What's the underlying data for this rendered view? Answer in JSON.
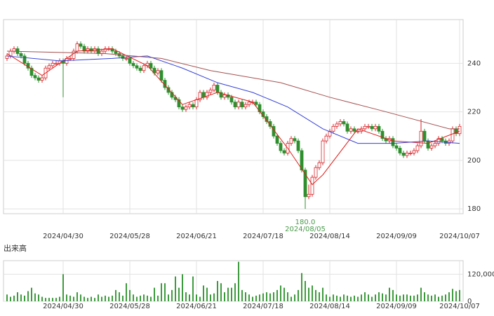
{
  "chart_data": [
    {
      "type": "candlestick",
      "categories": [
        null,
        null,
        null,
        null,
        null,
        null,
        null,
        null,
        null,
        null,
        null,
        null,
        null,
        null,
        null,
        null,
        "2024/04/30",
        null,
        null,
        null,
        null,
        null,
        null,
        null,
        null,
        null,
        null,
        null,
        null,
        null,
        null,
        null,
        null,
        null,
        null,
        "2024/05/28",
        null,
        null,
        null,
        null,
        null,
        null,
        null,
        null,
        null,
        null,
        null,
        null,
        null,
        null,
        null,
        null,
        null,
        null,
        "2024/06/21",
        null,
        null,
        null,
        null,
        null,
        null,
        null,
        null,
        null,
        null,
        null,
        null,
        null,
        null,
        null,
        null,
        null,
        null,
        "2024/07/18",
        null,
        null,
        null,
        null,
        null,
        null,
        null,
        null,
        null,
        null,
        null,
        null,
        null,
        null,
        null,
        null,
        null,
        null,
        "2024/08/14",
        null,
        null,
        null,
        null,
        null,
        null,
        null,
        null,
        null,
        null,
        null,
        null,
        null,
        null,
        null,
        null,
        null,
        null,
        "2024/09/09",
        null,
        null,
        null,
        null,
        null,
        null,
        null,
        null,
        null,
        null,
        null,
        null,
        null,
        null,
        null,
        null,
        null,
        "2024/10/07"
      ],
      "open": [
        242,
        243,
        245,
        246,
        244,
        243,
        240,
        238,
        235,
        234,
        233,
        234,
        238,
        239,
        240,
        240,
        241,
        240,
        242,
        242,
        245,
        248,
        247,
        245,
        246,
        245,
        246,
        244,
        245,
        246,
        246,
        245,
        244,
        243,
        242,
        242,
        240,
        239,
        238,
        237,
        239,
        240,
        238,
        236,
        237,
        233,
        230,
        228,
        226,
        225,
        222,
        221,
        222,
        223,
        222,
        225,
        228,
        226,
        228,
        229,
        231,
        228,
        226,
        227,
        226,
        224,
        222,
        224,
        222,
        223,
        224,
        224,
        223,
        220,
        218,
        216,
        214,
        210,
        207,
        204,
        203,
        207,
        209,
        208,
        204,
        196,
        185,
        186,
        193,
        197,
        199,
        208,
        210,
        212,
        214,
        215,
        216,
        215,
        212,
        213,
        212,
        212,
        213,
        214,
        214,
        213,
        214,
        212,
        209,
        208,
        209,
        206,
        205,
        203,
        202,
        203,
        203,
        204,
        206,
        212,
        208,
        205,
        206,
        207,
        209,
        208,
        207,
        208,
        213,
        211
      ],
      "high": [
        244,
        246,
        247,
        247,
        245,
        244,
        241,
        239,
        236,
        235,
        235,
        239,
        240,
        241,
        241,
        242,
        242,
        243,
        243,
        246,
        249,
        249,
        248,
        247,
        247,
        247,
        247,
        246,
        247,
        247,
        247,
        246,
        245,
        244,
        243,
        243,
        241,
        240,
        239,
        240,
        241,
        241,
        239,
        238,
        238,
        234,
        231,
        229,
        227,
        226,
        223,
        223,
        224,
        224,
        226,
        229,
        229,
        229,
        230,
        232,
        232,
        229,
        228,
        228,
        227,
        225,
        225,
        225,
        224,
        225,
        225,
        225,
        224,
        221,
        219,
        217,
        215,
        211,
        208,
        205,
        208,
        210,
        210,
        209,
        205,
        197,
        190,
        194,
        198,
        200,
        209,
        211,
        213,
        215,
        216,
        217,
        217,
        216,
        214,
        214,
        213,
        214,
        215,
        215,
        215,
        215,
        215,
        213,
        210,
        210,
        210,
        207,
        206,
        204,
        204,
        204,
        205,
        207,
        217,
        213,
        209,
        207,
        208,
        210,
        210,
        209,
        209,
        214,
        214,
        215
      ],
      "low": [
        241,
        242,
        244,
        243,
        242,
        239,
        237,
        234,
        233,
        232,
        232,
        233,
        237,
        238,
        239,
        239,
        226,
        239,
        241,
        241,
        244,
        246,
        244,
        244,
        244,
        244,
        243,
        243,
        244,
        245,
        244,
        243,
        242,
        241,
        241,
        239,
        238,
        237,
        236,
        236,
        238,
        237,
        235,
        235,
        232,
        229,
        227,
        225,
        224,
        221,
        220,
        220,
        221,
        221,
        221,
        224,
        225,
        225,
        227,
        228,
        227,
        225,
        225,
        225,
        223,
        221,
        221,
        221,
        221,
        222,
        223,
        222,
        219,
        217,
        215,
        213,
        209,
        206,
        203,
        202,
        202,
        206,
        207,
        203,
        195,
        180,
        184,
        185,
        192,
        196,
        198,
        207,
        209,
        211,
        213,
        214,
        214,
        211,
        211,
        211,
        211,
        211,
        212,
        213,
        212,
        212,
        211,
        208,
        207,
        207,
        205,
        204,
        202,
        201,
        201,
        202,
        202,
        203,
        205,
        207,
        204,
        204,
        205,
        206,
        207,
        206,
        206,
        207,
        210,
        210
      ],
      "close": [
        243,
        245,
        246,
        244,
        243,
        240,
        238,
        235,
        234,
        233,
        234,
        238,
        239,
        240,
        240,
        241,
        240,
        242,
        242,
        245,
        248,
        247,
        245,
        246,
        245,
        246,
        244,
        245,
        246,
        246,
        245,
        244,
        243,
        242,
        242,
        240,
        239,
        238,
        237,
        239,
        240,
        238,
        236,
        237,
        233,
        230,
        228,
        226,
        225,
        222,
        221,
        222,
        223,
        222,
        225,
        228,
        226,
        228,
        229,
        231,
        228,
        226,
        227,
        226,
        224,
        222,
        224,
        222,
        223,
        224,
        224,
        223,
        220,
        218,
        216,
        214,
        210,
        207,
        204,
        203,
        207,
        209,
        208,
        204,
        196,
        185,
        186,
        193,
        197,
        199,
        208,
        210,
        212,
        214,
        215,
        216,
        215,
        212,
        213,
        212,
        212,
        213,
        214,
        214,
        213,
        214,
        212,
        209,
        208,
        209,
        206,
        205,
        203,
        202,
        203,
        203,
        204,
        206,
        212,
        208,
        205,
        206,
        207,
        209,
        208,
        207,
        208,
        213,
        211,
        214
      ],
      "up_color": "#d8262b",
      "down_color": "#2f8f2f",
      "lines": [
        {
          "color": "#e0201c",
          "x": [
            0,
            10,
            20,
            30,
            40,
            50,
            60,
            70,
            80,
            87,
            90,
            100,
            110,
            120,
            129
          ],
          "values": [
            244,
            235,
            245,
            246,
            239,
            223,
            228,
            224,
            205,
            190,
            194,
            213,
            208,
            207,
            212
          ]
        },
        {
          "color": "#3341d6",
          "x": [
            0,
            15,
            30,
            40,
            50,
            60,
            70,
            80,
            90,
            100,
            110,
            120,
            129
          ],
          "values": [
            243,
            241,
            242,
            243,
            238,
            232,
            228,
            222,
            213,
            207,
            207,
            208,
            207
          ]
        },
        {
          "color": "#a55050",
          "x": [
            0,
            28,
            44,
            58,
            78,
            92,
            108,
            126,
            129
          ],
          "values": [
            245,
            244,
            242,
            237,
            232,
            226,
            220,
            213,
            213
          ]
        }
      ],
      "annotation": {
        "value": 180,
        "label": "180.0",
        "date": "2024/08/05"
      },
      "ylim": [
        178,
        258
      ],
      "yticks": [
        180,
        200,
        220,
        240
      ],
      "grid": true
    },
    {
      "type": "bar",
      "title": "出来高",
      "categories": [
        null,
        null,
        null,
        null,
        null,
        null,
        null,
        null,
        null,
        null,
        null,
        null,
        null,
        null,
        null,
        null,
        "2024/04/30",
        null,
        null,
        null,
        null,
        null,
        null,
        null,
        null,
        null,
        null,
        null,
        null,
        null,
        null,
        null,
        null,
        null,
        null,
        "2024/05/28",
        null,
        null,
        null,
        null,
        null,
        null,
        null,
        null,
        null,
        null,
        null,
        null,
        null,
        null,
        null,
        null,
        null,
        null,
        "2024/06/21",
        null,
        null,
        null,
        null,
        null,
        null,
        null,
        null,
        null,
        null,
        null,
        null,
        null,
        null,
        null,
        null,
        null,
        null,
        "2024/07/18",
        null,
        null,
        null,
        null,
        null,
        null,
        null,
        null,
        null,
        null,
        null,
        null,
        null,
        null,
        null,
        null,
        null,
        null,
        "2024/08/14",
        null,
        null,
        null,
        null,
        null,
        null,
        null,
        null,
        null,
        null,
        null,
        null,
        null,
        null,
        null,
        null,
        null,
        null,
        "2024/09/09",
        null,
        null,
        null,
        null,
        null,
        null,
        null,
        null,
        null,
        null,
        null,
        null,
        null,
        null,
        null,
        null,
        null,
        "2024/10/07"
      ],
      "values": [
        30000,
        20000,
        25000,
        40000,
        30000,
        25000,
        45000,
        60000,
        35000,
        30000,
        20000,
        15000,
        15000,
        15000,
        15000,
        20000,
        120000,
        30000,
        25000,
        20000,
        40000,
        30000,
        20000,
        15000,
        20000,
        15000,
        30000,
        20000,
        25000,
        20000,
        25000,
        50000,
        40000,
        25000,
        80000,
        50000,
        30000,
        20000,
        25000,
        30000,
        25000,
        20000,
        60000,
        25000,
        80000,
        80000,
        30000,
        50000,
        110000,
        60000,
        120000,
        40000,
        30000,
        110000,
        30000,
        20000,
        70000,
        60000,
        30000,
        35000,
        90000,
        80000,
        40000,
        60000,
        60000,
        80000,
        175000,
        50000,
        40000,
        30000,
        20000,
        25000,
        30000,
        35000,
        40000,
        35000,
        40000,
        50000,
        70000,
        60000,
        40000,
        20000,
        30000,
        50000,
        125000,
        90000,
        60000,
        70000,
        50000,
        40000,
        60000,
        30000,
        20000,
        30000,
        25000,
        20000,
        30000,
        25000,
        20000,
        25000,
        20000,
        30000,
        40000,
        30000,
        20000,
        30000,
        40000,
        35000,
        30000,
        60000,
        50000,
        30000,
        25000,
        30000,
        30000,
        25000,
        25000,
        30000,
        60000,
        40000,
        30000,
        25000,
        30000,
        20000,
        25000,
        30000,
        40000,
        55000,
        45000,
        50000
      ],
      "color": "#3d9a3d",
      "ylim": [
        0,
        180000
      ],
      "yticks": [
        0,
        {
          "value": 120000,
          "label": "120,000"
        }
      ],
      "grid": true
    }
  ]
}
